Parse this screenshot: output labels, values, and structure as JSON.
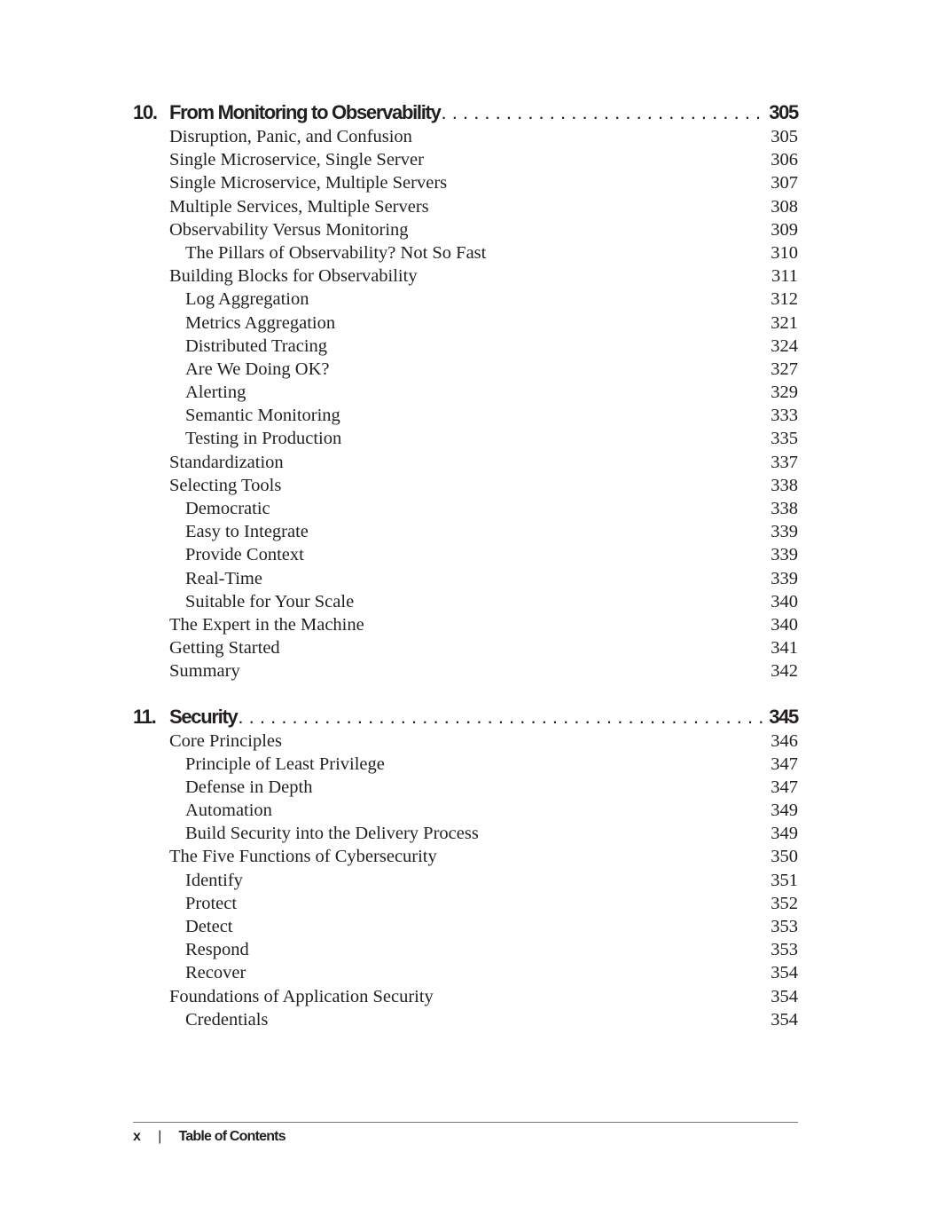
{
  "chapters": [
    {
      "number": "10.",
      "title": "From Monitoring to Observability",
      "page": "305",
      "entries": [
        {
          "title": "Disruption, Panic, and Confusion",
          "page": "305",
          "level": 1
        },
        {
          "title": "Single Microservice, Single Server",
          "page": "306",
          "level": 1
        },
        {
          "title": "Single Microservice, Multiple Servers",
          "page": "307",
          "level": 1
        },
        {
          "title": "Multiple Services, Multiple Servers",
          "page": "308",
          "level": 1
        },
        {
          "title": "Observability Versus Monitoring",
          "page": "309",
          "level": 1
        },
        {
          "title": "The Pillars of Observability? Not So Fast",
          "page": "310",
          "level": 2
        },
        {
          "title": "Building Blocks for Observability",
          "page": "311",
          "level": 1
        },
        {
          "title": "Log Aggregation",
          "page": "312",
          "level": 2
        },
        {
          "title": "Metrics Aggregation",
          "page": "321",
          "level": 2
        },
        {
          "title": "Distributed Tracing",
          "page": "324",
          "level": 2
        },
        {
          "title": "Are We Doing OK?",
          "page": "327",
          "level": 2
        },
        {
          "title": "Alerting",
          "page": "329",
          "level": 2
        },
        {
          "title": "Semantic Monitoring",
          "page": "333",
          "level": 2
        },
        {
          "title": "Testing in Production",
          "page": "335",
          "level": 2
        },
        {
          "title": "Standardization",
          "page": "337",
          "level": 1
        },
        {
          "title": "Selecting Tools",
          "page": "338",
          "level": 1
        },
        {
          "title": "Democratic",
          "page": "338",
          "level": 2
        },
        {
          "title": "Easy to Integrate",
          "page": "339",
          "level": 2
        },
        {
          "title": "Provide Context",
          "page": "339",
          "level": 2
        },
        {
          "title": "Real-Time",
          "page": "339",
          "level": 2
        },
        {
          "title": "Suitable for Your Scale",
          "page": "340",
          "level": 2
        },
        {
          "title": "The Expert in the Machine",
          "page": "340",
          "level": 1
        },
        {
          "title": "Getting Started",
          "page": "341",
          "level": 1
        },
        {
          "title": "Summary",
          "page": "342",
          "level": 1
        }
      ]
    },
    {
      "number": "11.",
      "title": "Security",
      "page": "345",
      "entries": [
        {
          "title": "Core Principles",
          "page": "346",
          "level": 1
        },
        {
          "title": "Principle of Least Privilege",
          "page": "347",
          "level": 2
        },
        {
          "title": "Defense in Depth",
          "page": "347",
          "level": 2
        },
        {
          "title": "Automation",
          "page": "349",
          "level": 2
        },
        {
          "title": "Build Security into the Delivery Process",
          "page": "349",
          "level": 2
        },
        {
          "title": "The Five Functions of Cybersecurity",
          "page": "350",
          "level": 1
        },
        {
          "title": "Identify",
          "page": "351",
          "level": 2
        },
        {
          "title": "Protect",
          "page": "352",
          "level": 2
        },
        {
          "title": "Detect",
          "page": "353",
          "level": 2
        },
        {
          "title": "Respond",
          "page": "353",
          "level": 2
        },
        {
          "title": "Recover",
          "page": "354",
          "level": 2
        },
        {
          "title": "Foundations of Application Security",
          "page": "354",
          "level": 1
        },
        {
          "title": "Credentials",
          "page": "354",
          "level": 2
        }
      ]
    }
  ],
  "footer": {
    "page_number": "x",
    "separator": "|",
    "section": "Table of Contents"
  }
}
